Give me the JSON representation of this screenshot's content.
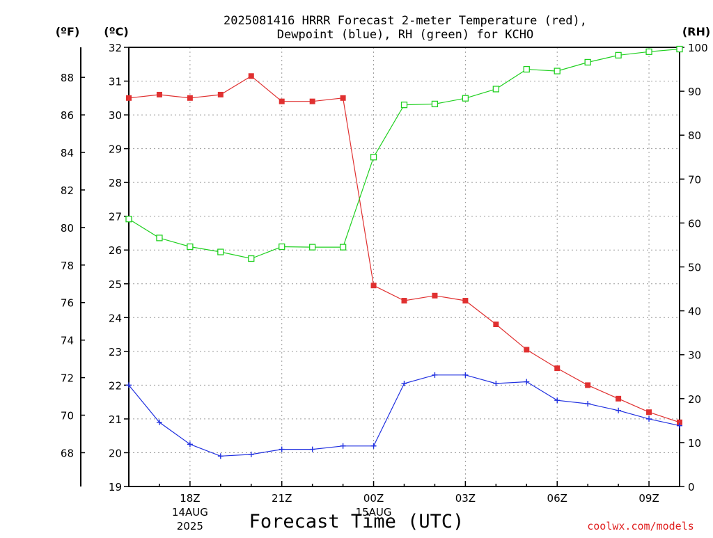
{
  "title_line1": "2025081416 HRRR Forecast 2-meter Temperature (red),",
  "title_line2": "Dewpoint (blue), RH (green) for KCHO",
  "credit": "coolwx.com/models",
  "chart_data": {
    "type": "line",
    "xlabel": "Forecast Time (UTC)",
    "x": [
      "16Z",
      "17Z",
      "18Z",
      "19Z",
      "20Z",
      "21Z",
      "22Z",
      "23Z",
      "00Z",
      "01Z",
      "02Z",
      "03Z",
      "04Z",
      "05Z",
      "06Z",
      "07Z",
      "08Z",
      "09Z",
      "10Z"
    ],
    "x_tick_labels": [
      {
        "hour": "18Z",
        "date": "14AUG",
        "year": "2025"
      },
      {
        "hour": "21Z",
        "date": "",
        "year": ""
      },
      {
        "hour": "00Z",
        "date": "15AUG",
        "year": ""
      },
      {
        "hour": "03Z",
        "date": "",
        "year": ""
      },
      {
        "hour": "06Z",
        "date": "",
        "year": ""
      },
      {
        "hour": "09Z",
        "date": "",
        "year": ""
      }
    ],
    "axes": {
      "fahrenheit": {
        "unit": "(ºF)",
        "ticks": [
          68,
          70,
          72,
          74,
          76,
          78,
          80,
          82,
          84,
          86,
          88
        ]
      },
      "celsius": {
        "unit": "(ºC)",
        "ylim": [
          19,
          32
        ],
        "ticks": [
          19,
          20,
          21,
          22,
          23,
          24,
          25,
          26,
          27,
          28,
          29,
          30,
          31,
          32
        ]
      },
      "rh": {
        "unit": "(RH)",
        "ylim": [
          0,
          100
        ],
        "ticks": [
          0,
          10,
          20,
          30,
          40,
          50,
          60,
          70,
          80,
          90,
          100
        ]
      }
    },
    "grid": true,
    "series": [
      {
        "axis": "celsius",
        "color": "#e03030",
        "marker": "filled-square",
        "values": [
          30.5,
          30.6,
          30.5,
          30.6,
          31.15,
          30.4,
          30.4,
          30.5,
          24.95,
          24.5,
          24.65,
          24.5,
          23.8,
          23.05,
          22.5,
          22.0,
          21.6,
          21.2,
          20.9
        ]
      },
      {
        "axis": "celsius",
        "color": "#2030e0",
        "marker": "plus",
        "values": [
          22.0,
          20.9,
          20.25,
          19.9,
          19.95,
          20.1,
          20.1,
          20.2,
          20.2,
          22.05,
          22.3,
          22.3,
          22.05,
          22.1,
          21.55,
          21.45,
          21.25,
          21.0,
          20.8
        ]
      },
      {
        "axis": "rh",
        "color": "#20d020",
        "marker": "open-square",
        "values": [
          60.9,
          56.6,
          54.6,
          53.4,
          51.9,
          54.6,
          54.5,
          54.5,
          75.0,
          86.9,
          87.1,
          88.4,
          90.5,
          95.0,
          94.6,
          96.6,
          98.2,
          99.0,
          99.6
        ]
      }
    ]
  }
}
